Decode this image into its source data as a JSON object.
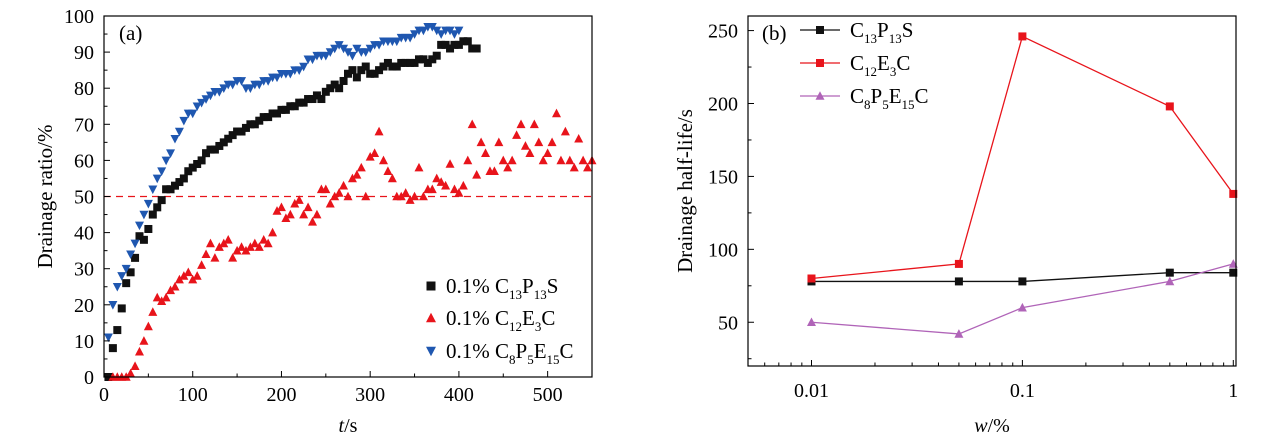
{
  "chart_data": [
    {
      "type": "scatter",
      "panel_label": "(a)",
      "xlabel": {
        "italic": "t",
        "rest": "/s"
      },
      "ylabel": "Drainage ratio/%",
      "xlim": [
        0,
        550
      ],
      "ylim": [
        0,
        100
      ],
      "xticks": [
        0,
        100,
        200,
        300,
        400,
        500
      ],
      "yticks": [
        0,
        10,
        20,
        30,
        40,
        50,
        60,
        70,
        80,
        90,
        100
      ],
      "xtick_labels": [
        "0",
        "100",
        "200",
        "300",
        "400",
        "500"
      ],
      "ytick_labels": [
        "0",
        "10",
        "20",
        "30",
        "40",
        "50",
        "60",
        "70",
        "80",
        "90",
        "100"
      ],
      "reference_line": {
        "y": 50,
        "color": "#e8141b",
        "style": "dashed"
      },
      "legend_position": "bottom-right",
      "series": [
        {
          "key": "C13P13S",
          "legend": {
            "prefix": "0.1% ",
            "formula": [
              [
                "C",
                ""
              ],
              [
                "13",
                "sub"
              ],
              [
                "P",
                ""
              ],
              [
                "13",
                "sub"
              ],
              [
                "S",
                ""
              ]
            ]
          },
          "marker": "square",
          "color": "#111111",
          "x": [
            5,
            10,
            15,
            20,
            25,
            30,
            35,
            40,
            45,
            50,
            55,
            60,
            65,
            70,
            75,
            80,
            85,
            90,
            95,
            100,
            105,
            110,
            115,
            120,
            125,
            130,
            135,
            140,
            145,
            150,
            155,
            160,
            165,
            170,
            175,
            180,
            185,
            190,
            195,
            200,
            205,
            210,
            215,
            220,
            225,
            230,
            235,
            240,
            245,
            250,
            255,
            260,
            265,
            270,
            275,
            280,
            285,
            290,
            295,
            300,
            305,
            310,
            315,
            320,
            325,
            330,
            335,
            340,
            345,
            350,
            355,
            360,
            365,
            370,
            375,
            380,
            385,
            390,
            395,
            400,
            405,
            410,
            415,
            420
          ],
          "y": [
            0,
            8,
            13,
            19,
            26,
            29,
            33,
            39,
            38,
            41,
            45,
            47,
            49,
            52,
            52,
            53,
            54,
            55,
            57,
            58,
            59,
            60,
            62,
            63,
            63,
            64,
            65,
            66,
            67,
            68,
            68,
            69,
            70,
            70,
            71,
            72,
            72,
            73,
            73,
            74,
            74,
            75,
            75,
            76,
            76,
            77,
            77,
            78,
            77,
            79,
            80,
            81,
            80,
            82,
            84,
            85,
            83,
            85,
            86,
            84,
            84,
            85,
            86,
            87,
            86,
            86,
            87,
            87,
            87,
            87,
            88,
            88,
            87,
            88,
            89,
            92,
            92,
            91,
            92,
            92,
            93,
            93,
            91,
            91
          ]
        },
        {
          "key": "C12E3C",
          "legend": {
            "prefix": "0.1% ",
            "formula": [
              [
                "C",
                ""
              ],
              [
                "12",
                "sub"
              ],
              [
                "E",
                ""
              ],
              [
                "3",
                "sub"
              ],
              [
                "C",
                ""
              ]
            ]
          },
          "marker": "triangle-up",
          "color": "#e8141b",
          "x": [
            10,
            15,
            20,
            25,
            30,
            35,
            40,
            45,
            50,
            55,
            60,
            65,
            70,
            75,
            80,
            85,
            90,
            95,
            100,
            105,
            110,
            115,
            120,
            125,
            130,
            135,
            140,
            145,
            150,
            155,
            160,
            165,
            170,
            175,
            180,
            185,
            190,
            195,
            200,
            205,
            210,
            215,
            220,
            225,
            230,
            235,
            240,
            245,
            250,
            255,
            260,
            265,
            270,
            275,
            280,
            285,
            290,
            295,
            300,
            305,
            310,
            315,
            320,
            325,
            330,
            335,
            340,
            345,
            350,
            355,
            360,
            365,
            370,
            375,
            380,
            385,
            390,
            395,
            400,
            405,
            410,
            415,
            420,
            425,
            430,
            435,
            440,
            445,
            450,
            455,
            460,
            465,
            470,
            475,
            480,
            485,
            490,
            495,
            500,
            505,
            510,
            515,
            520,
            525,
            530,
            535,
            540,
            545,
            550
          ],
          "y": [
            0,
            0,
            0,
            0,
            1,
            3,
            7,
            10,
            14,
            18,
            22,
            21,
            22,
            24,
            25,
            27,
            28,
            29,
            27,
            28,
            31,
            34,
            37,
            33,
            36,
            37,
            38,
            33,
            35,
            36,
            35,
            36,
            37,
            36,
            38,
            37,
            40,
            46,
            47,
            44,
            45,
            48,
            49,
            45,
            47,
            43,
            45,
            52,
            52,
            48,
            50,
            51,
            53,
            50,
            55,
            56,
            58,
            50,
            61,
            62,
            68,
            60,
            57,
            55,
            50,
            50,
            51,
            49,
            50,
            58,
            50,
            52,
            52,
            55,
            54,
            53,
            59,
            52,
            51,
            53,
            60,
            70,
            56,
            65,
            62,
            57,
            57,
            65,
            60,
            58,
            60,
            67,
            70,
            64,
            62,
            70,
            65,
            60,
            62,
            65,
            73,
            60,
            68,
            60,
            58,
            66,
            60,
            58,
            60
          ]
        },
        {
          "key": "C8P5E15C",
          "legend": {
            "prefix": "0.1% ",
            "formula": [
              [
                "C",
                ""
              ],
              [
                "8",
                "sub"
              ],
              [
                "P",
                ""
              ],
              [
                "5",
                "sub"
              ],
              [
                "E",
                ""
              ],
              [
                "15",
                "sub"
              ],
              [
                "C",
                ""
              ]
            ]
          },
          "marker": "triangle-down",
          "color": "#1f57b0",
          "x": [
            5,
            10,
            15,
            20,
            25,
            30,
            35,
            40,
            45,
            50,
            55,
            60,
            65,
            70,
            75,
            80,
            85,
            90,
            95,
            100,
            105,
            110,
            115,
            120,
            125,
            130,
            135,
            140,
            145,
            150,
            155,
            160,
            165,
            170,
            175,
            180,
            185,
            190,
            195,
            200,
            205,
            210,
            215,
            220,
            225,
            230,
            235,
            240,
            245,
            250,
            255,
            260,
            265,
            270,
            275,
            280,
            285,
            290,
            295,
            300,
            305,
            310,
            315,
            320,
            325,
            330,
            335,
            340,
            345,
            350,
            355,
            360,
            365,
            370,
            375,
            380,
            385,
            390,
            395,
            400
          ],
          "y": [
            11,
            20,
            25,
            28,
            30,
            34,
            37,
            42,
            45,
            48,
            52,
            55,
            57,
            60,
            62,
            66,
            68,
            71,
            73,
            73,
            75,
            76,
            77,
            78,
            79,
            79,
            80,
            81,
            81,
            82,
            82,
            80,
            80,
            81,
            81,
            82,
            82,
            83,
            83,
            84,
            84,
            84,
            85,
            85,
            86,
            88,
            88,
            89,
            89,
            89,
            90,
            91,
            92,
            91,
            90,
            89,
            91,
            90,
            90,
            91,
            92,
            92,
            93,
            93,
            93,
            93,
            94,
            94,
            94,
            95,
            96,
            96,
            97,
            97,
            96,
            95,
            96,
            96,
            95,
            96
          ]
        }
      ]
    },
    {
      "type": "line",
      "panel_label": "(b)",
      "xlabel": {
        "italic": "w",
        "rest": "/%"
      },
      "ylabel": "Drainage half-life/s",
      "xscale": "log",
      "xlim": [
        0.005,
        1.03
      ],
      "ylim": [
        20,
        260
      ],
      "x": [
        0.01,
        0.05,
        0.1,
        0.5,
        1
      ],
      "xtick_labels": [
        "0.01",
        "0.1",
        "1"
      ],
      "yticks": [
        50,
        100,
        150,
        200,
        250
      ],
      "ytick_labels": [
        "50",
        "100",
        "150",
        "200",
        "250"
      ],
      "legend_position": "top-left",
      "series": [
        {
          "key": "C13P13S",
          "legend": {
            "prefix": "",
            "formula": [
              [
                "C",
                ""
              ],
              [
                "13",
                "sub"
              ],
              [
                "P",
                ""
              ],
              [
                "13",
                "sub"
              ],
              [
                "S",
                ""
              ]
            ]
          },
          "marker": "square",
          "color": "#111111",
          "values": [
            78,
            78,
            78,
            84,
            84
          ]
        },
        {
          "key": "C12E3C",
          "legend": {
            "prefix": "",
            "formula": [
              [
                "C",
                ""
              ],
              [
                "12",
                "sub"
              ],
              [
                "E",
                ""
              ],
              [
                "3",
                "sub"
              ],
              [
                "C",
                ""
              ]
            ]
          },
          "marker": "square",
          "color": "#e8141b",
          "values": [
            80,
            90,
            246,
            198,
            138
          ]
        },
        {
          "key": "C8P5E15C",
          "legend": {
            "prefix": "",
            "formula": [
              [
                "C",
                ""
              ],
              [
                "8",
                "sub"
              ],
              [
                "P",
                ""
              ],
              [
                "5",
                "sub"
              ],
              [
                "E",
                ""
              ],
              [
                "15",
                "sub"
              ],
              [
                "C",
                ""
              ]
            ]
          },
          "marker": "triangle-up",
          "color": "#b064b8",
          "values": [
            50,
            42,
            60,
            78,
            90
          ]
        }
      ]
    }
  ]
}
